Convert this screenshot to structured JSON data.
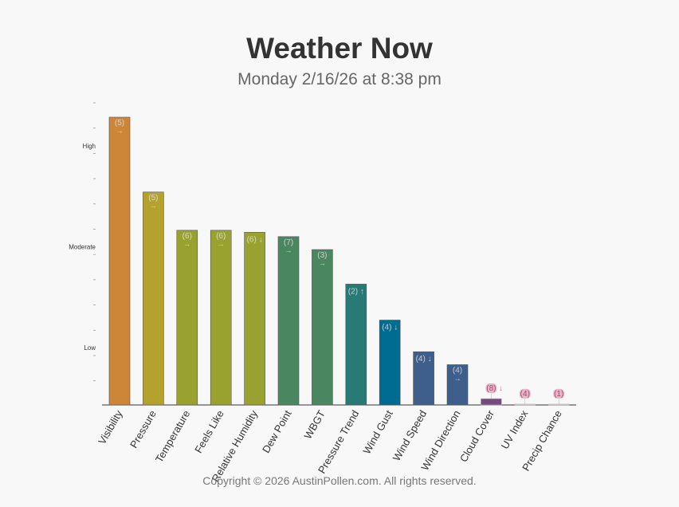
{
  "header": {
    "title": "Weather Now",
    "subtitle": "Monday 2/16/26 at 8:38 pm"
  },
  "footer": {
    "copyright": "Copyright © 2026 AustinPollen.com.  All rights reserved."
  },
  "chart_data": {
    "type": "bar",
    "ylim": [
      0,
      1
    ],
    "y_levels": [
      {
        "label": "Low",
        "value": 0.2
      },
      {
        "label": "Moderate",
        "value": 0.55
      },
      {
        "label": "High",
        "value": 0.9
      }
    ],
    "categories": [
      "Visibility",
      "Pressure",
      "Temperature",
      "Feels Like",
      "Relative Humidity",
      "Dew Point",
      "WBGT",
      "Pressure Trend",
      "Wind Gust",
      "Wind Speed",
      "Wind Direction",
      "Cloud Cover",
      "UV Index",
      "Precip Chance"
    ],
    "values": [
      1.0,
      0.74,
      0.607,
      0.607,
      0.6,
      0.585,
      0.54,
      0.42,
      0.295,
      0.185,
      0.14,
      0.022,
      0.003,
      0.003
    ],
    "labels": [
      "(5)",
      "(5)",
      "(6)",
      "(6)",
      "(6)",
      "(7)",
      "(3)",
      "(2)",
      "(4)",
      "(4)",
      "(4)",
      "(8)",
      "(4)",
      "(1)"
    ],
    "trends": [
      "→",
      "→",
      "→",
      "→",
      "↓",
      "→",
      "→",
      "↑",
      "↓",
      "↓",
      "→",
      "↓",
      "",
      ""
    ],
    "colors": [
      "#cd8537",
      "#b5a22e",
      "#99a22e",
      "#99a22e",
      "#99a22e",
      "#4a8761",
      "#4a8761",
      "#287a75",
      "#006c91",
      "#3e5e8c",
      "#3e5e8c",
      "#744b7c",
      "#cccccc",
      "#cccccc"
    ],
    "grid": false
  }
}
